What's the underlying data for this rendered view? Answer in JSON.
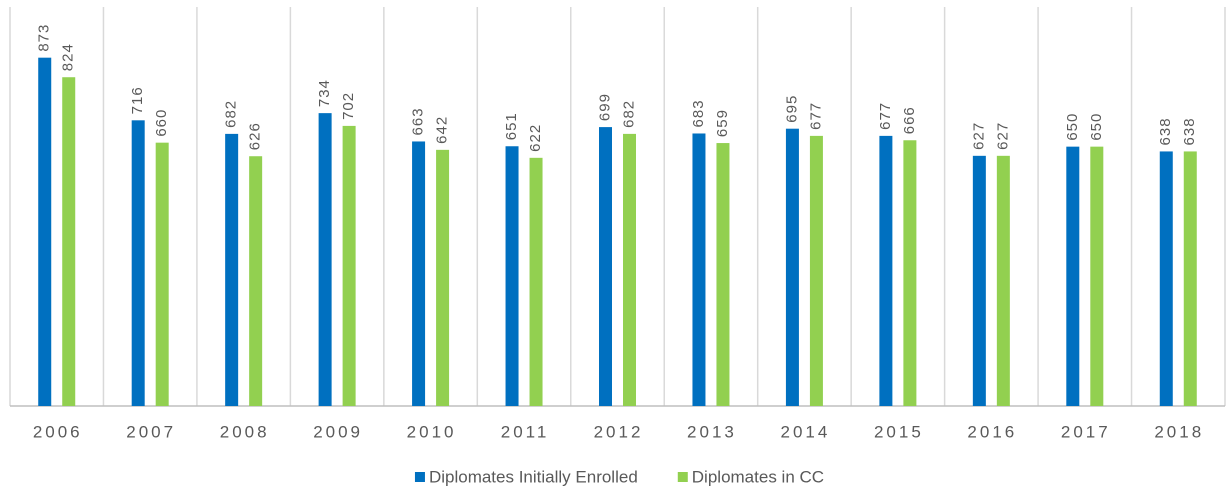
{
  "chart_data": {
    "type": "bar",
    "categories": [
      "2006",
      "2007",
      "2008",
      "2009",
      "2010",
      "2011",
      "2012",
      "2013",
      "2014",
      "2015",
      "2016",
      "2017",
      "2018"
    ],
    "series": [
      {
        "name": "Diplomates Initially Enrolled",
        "color": "#0070c0",
        "values": [
          873,
          716,
          682,
          734,
          663,
          651,
          699,
          683,
          695,
          677,
          627,
          650,
          638
        ]
      },
      {
        "name": "Diplomates in CC",
        "color": "#92d050",
        "values": [
          824,
          660,
          626,
          702,
          642,
          622,
          682,
          659,
          677,
          666,
          627,
          650,
          638
        ]
      }
    ],
    "ylim": [
      0,
      1000
    ]
  }
}
